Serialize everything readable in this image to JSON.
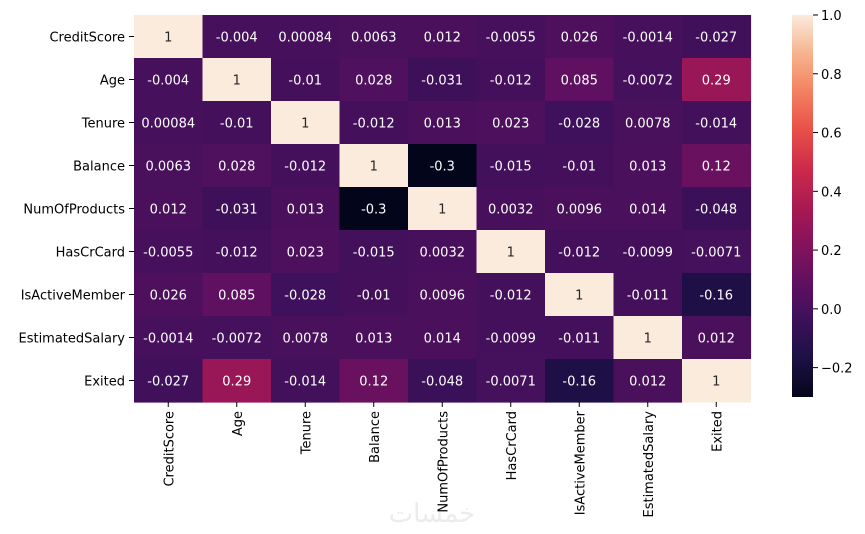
{
  "chart_data": {
    "type": "heatmap",
    "rows": [
      "CreditScore",
      "Age",
      "Tenure",
      "Balance",
      "NumOfProducts",
      "HasCrCard",
      "IsActiveMember",
      "EstimatedSalary",
      "Exited"
    ],
    "columns": [
      "CreditScore",
      "Age",
      "Tenure",
      "Balance",
      "NumOfProducts",
      "HasCrCard",
      "IsActiveMember",
      "EstimatedSalary",
      "Exited"
    ],
    "values": [
      [
        1,
        -0.004,
        0.00084,
        0.0063,
        0.012,
        -0.0055,
        0.026,
        -0.0014,
        -0.027
      ],
      [
        -0.004,
        1,
        -0.01,
        0.028,
        -0.031,
        -0.012,
        0.085,
        -0.0072,
        0.29
      ],
      [
        0.00084,
        -0.01,
        1,
        -0.012,
        0.013,
        0.023,
        -0.028,
        0.0078,
        -0.014
      ],
      [
        0.0063,
        0.028,
        -0.012,
        1,
        -0.3,
        -0.015,
        -0.01,
        0.013,
        0.12
      ],
      [
        0.012,
        -0.031,
        0.013,
        -0.3,
        1,
        0.0032,
        0.0096,
        0.014,
        -0.048
      ],
      [
        -0.0055,
        -0.012,
        0.023,
        -0.015,
        0.0032,
        1,
        -0.012,
        -0.0099,
        -0.0071
      ],
      [
        0.026,
        0.085,
        -0.028,
        -0.01,
        0.0096,
        -0.012,
        1,
        -0.011,
        -0.16
      ],
      [
        -0.0014,
        -0.0072,
        0.0078,
        0.013,
        0.014,
        -0.0099,
        -0.011,
        1,
        0.012
      ],
      [
        -0.027,
        0.29,
        -0.014,
        0.12,
        -0.048,
        -0.0071,
        -0.16,
        0.012,
        1
      ]
    ],
    "annotations": [
      [
        "1",
        "-0.004",
        "0.00084",
        "0.0063",
        "0.012",
        "-0.0055",
        "0.026",
        "-0.0014",
        "-0.027"
      ],
      [
        "-0.004",
        "1",
        "-0.01",
        "0.028",
        "-0.031",
        "-0.012",
        "0.085",
        "-0.0072",
        "0.29"
      ],
      [
        "0.00084",
        "-0.01",
        "1",
        "-0.012",
        "0.013",
        "0.023",
        "-0.028",
        "0.0078",
        "-0.014"
      ],
      [
        "0.0063",
        "0.028",
        "-0.012",
        "1",
        "-0.3",
        "-0.015",
        "-0.01",
        "0.013",
        "0.12"
      ],
      [
        "0.012",
        "-0.031",
        "0.013",
        "-0.3",
        "1",
        "0.0032",
        "0.0096",
        "0.014",
        "-0.048"
      ],
      [
        "-0.0055",
        "-0.012",
        "0.023",
        "-0.015",
        "0.0032",
        "1",
        "-0.012",
        "-0.0099",
        "-0.0071"
      ],
      [
        "0.026",
        "0.085",
        "-0.028",
        "-0.01",
        "0.0096",
        "-0.012",
        "1",
        "-0.011",
        "-0.16"
      ],
      [
        "-0.0014",
        "-0.0072",
        "0.0078",
        "0.013",
        "0.014",
        "-0.0099",
        "-0.011",
        "1",
        "0.012"
      ],
      [
        "-0.027",
        "0.29",
        "-0.014",
        "0.12",
        "-0.048",
        "-0.0071",
        "-0.16",
        "0.012",
        "1"
      ]
    ],
    "colorbar": {
      "range": [
        -0.3,
        1
      ],
      "ticks": [
        -0.2,
        0.0,
        0.2,
        0.4,
        0.6,
        0.8,
        1.0
      ],
      "tick_labels": [
        "−0.2",
        "0.0",
        "0.2",
        "0.4",
        "0.6",
        "0.8",
        "1.0"
      ]
    },
    "colormap": "rocket",
    "grid": false,
    "legend": "colorbar-right"
  },
  "watermark": "خمسات"
}
